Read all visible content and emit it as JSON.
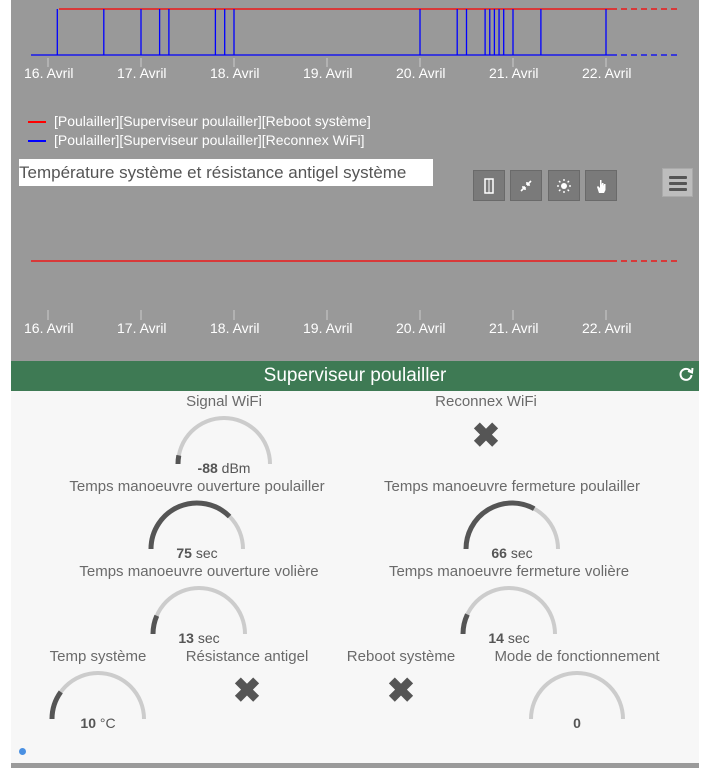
{
  "chart1": {
    "x_ticks": [
      "16. Avril",
      "17. Avril",
      "18. Avril",
      "19. Avril",
      "20. Avril",
      "21. Avril",
      "22. Avril"
    ],
    "legend": [
      {
        "label": "[Poulailler][Superviseur poulailler][Reboot système]",
        "color": "#ff0000"
      },
      {
        "label": "[Poulailler][Superviseur poulailler][Reconnex WiFi]",
        "color": "#0000ff"
      }
    ]
  },
  "chart2": {
    "title": "Température système et résistance antigel système",
    "x_ticks": [
      "16. Avril",
      "17. Avril",
      "18. Avril",
      "19. Avril",
      "20. Avril",
      "21. Avril",
      "22. Avril"
    ]
  },
  "chart_data": [
    {
      "type": "line",
      "title": "",
      "x": [
        "16. Avril",
        "17. Avril",
        "18. Avril",
        "19. Avril",
        "20. Avril",
        "21. Avril",
        "22. Avril"
      ],
      "series": [
        {
          "name": "[Poulailler][Superviseur poulailler][Reboot système]",
          "color": "#ff0000",
          "values": [
            1,
            1,
            1,
            1,
            1,
            1,
            1
          ]
        },
        {
          "name": "[Poulailler][Superviseur poulailler][Reconnex WiFi]",
          "color": "#0000ff",
          "pulses": [
            "16.1",
            "16.6",
            "17.0",
            "17.2",
            "17.3",
            "17.8",
            "17.9",
            "18.0",
            "20.0",
            "20.4",
            "20.5",
            "20.7",
            "20.75",
            "20.8",
            "20.85",
            "20.9",
            "21.0",
            "21.3",
            "22.0"
          ]
        }
      ],
      "grid": false,
      "legend": "bottom-left"
    },
    {
      "type": "line",
      "title": "Température système et résistance antigel système",
      "x": [
        "16. Avril",
        "17. Avril",
        "18. Avril",
        "19. Avril",
        "20. Avril",
        "21. Avril",
        "22. Avril"
      ],
      "series": [
        {
          "color": "#ff0000",
          "values": [
            0,
            0,
            0,
            0,
            0,
            0,
            0
          ]
        }
      ],
      "grid": false
    }
  ],
  "toolbar": {
    "buttons": [
      "column-icon",
      "compress-icon",
      "sun-icon",
      "hand-icon"
    ],
    "menu_icon": "menu-icon"
  },
  "widget": {
    "title": "Superviseur poulailler",
    "refresh_icon": "refresh-icon",
    "gauges": {
      "signal_wifi": {
        "title": "Signal WiFi",
        "value": "-88",
        "unit": "dBm",
        "fraction": 0.06
      },
      "reconnex_wifi": {
        "title": "Reconnex WiFi"
      },
      "ouverture_poulailler": {
        "title": "Temps manoeuvre ouverture poulailler",
        "value": "75",
        "unit": "sec",
        "fraction": 0.75
      },
      "fermeture_poulailler": {
        "title": "Temps manoeuvre fermeture poulailler",
        "value": "66",
        "unit": "sec",
        "fraction": 0.66
      },
      "ouverture_voliere": {
        "title": "Temps manoeuvre ouverture volière",
        "value": "13",
        "unit": "sec",
        "fraction": 0.13
      },
      "fermeture_voliere": {
        "title": "Temps manoeuvre fermeture volière",
        "value": "14",
        "unit": "sec",
        "fraction": 0.14
      },
      "temp_systeme": {
        "title": "Temp système",
        "value": "10",
        "unit": "°C",
        "fraction": 0.2
      },
      "resistance_antigel": {
        "title": "Résistance antigel"
      },
      "reboot_systeme": {
        "title": "Reboot système"
      },
      "mode_fonctionnement": {
        "title": "Mode de fonctionnement",
        "value": "0",
        "unit": "",
        "fraction": 0
      }
    }
  }
}
